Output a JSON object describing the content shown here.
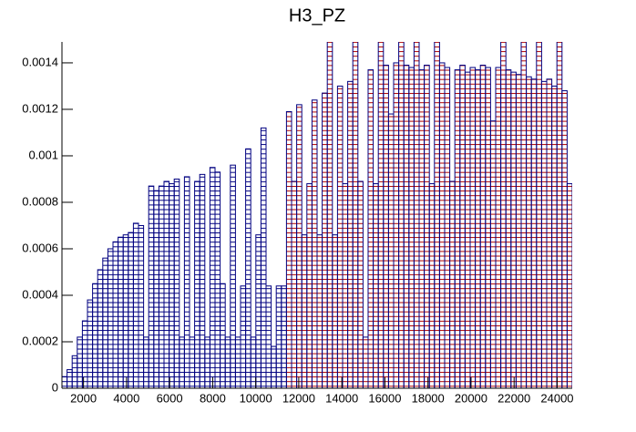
{
  "chart_data": {
    "type": "histogram",
    "title": "H3_PZ",
    "bins": [
      1000,
      1237,
      1474,
      1711,
      1948,
      2185,
      2422,
      2659,
      2896,
      3133,
      3370,
      3607,
      3844,
      4081,
      4318,
      4555,
      4792,
      5029,
      5266,
      5503,
      5740,
      5977,
      6214,
      6451,
      6688,
      6925,
      7162,
      7399,
      7636,
      7873,
      8110,
      8347,
      8584,
      8821,
      9058,
      9295,
      9532,
      9769,
      10006,
      10243,
      10480,
      10717,
      10954,
      11191,
      11428,
      11665,
      11902,
      12139,
      12376,
      12613,
      12850,
      13087,
      13324,
      13561,
      13798,
      14035,
      14272,
      14509,
      14746,
      14983,
      15220,
      15457,
      15694,
      15931,
      16168,
      16405,
      16642,
      16879,
      17116,
      17353,
      17590,
      17827,
      18064,
      18301,
      18538,
      18775,
      19012,
      19249,
      19486,
      19723,
      19960,
      20197,
      20434,
      20671,
      20908,
      21145,
      21382,
      21619,
      21856,
      22093,
      22330,
      22567,
      22804,
      23041,
      23278,
      23515,
      23752,
      23989,
      24226,
      24463,
      24700
    ],
    "values": [
      5e-05,
      8e-05,
      0.00014,
      0.00022,
      0.00029,
      0.00038,
      0.00045,
      0.00051,
      0.00056,
      0.0006,
      0.00063,
      0.00065,
      0.00066,
      0.00067,
      0.00071,
      0.0007,
      0.00022,
      0.00087,
      0.00085,
      0.00087,
      0.00089,
      0.00088,
      0.0009,
      0.00022,
      0.00091,
      0.00022,
      0.00089,
      0.00092,
      0.00022,
      0.00095,
      0.00093,
      0.00045,
      0.00022,
      0.00096,
      0.00022,
      0.00044,
      0.00103,
      0.00022,
      0.00066,
      0.00112,
      0.00044,
      0.00018,
      0.00044,
      0.00044,
      0.00119,
      0.00089,
      0.00122,
      0.00066,
      0.00088,
      0.00124,
      0.00066,
      0.00127,
      0.0015,
      0.00066,
      0.0013,
      0.00088,
      0.00132,
      0.0015,
      0.00089,
      0.00022,
      0.00137,
      0.00088,
      0.0015,
      0.00139,
      0.00118,
      0.0014,
      0.0015,
      0.00139,
      0.00138,
      0.0015,
      0.00137,
      0.00139,
      0.00088,
      0.0015,
      0.0014,
      0.00138,
      0.00089,
      0.00137,
      0.00139,
      0.00136,
      0.00138,
      0.00137,
      0.00139,
      0.00138,
      0.00115,
      0.00138,
      0.0015,
      0.00137,
      0.00136,
      0.00135,
      0.0015,
      0.00134,
      0.00133,
      0.0015,
      0.00132,
      0.00133,
      0.0013,
      0.0015,
      0.00128,
      0.00088
    ],
    "xlim": [
      1000,
      24700
    ],
    "ylim": [
      0,
      0.00149
    ],
    "xticks": [
      2000,
      4000,
      6000,
      8000,
      10000,
      12000,
      14000,
      16000,
      18000,
      20000,
      22000,
      24000
    ],
    "yticks": [
      0,
      0.0002,
      0.0004,
      0.0006,
      0.0008,
      0.001,
      0.0012,
      0.0014
    ],
    "line_color": "#000080",
    "hatch_colors": [
      {
        "from": 1000,
        "color": "#000080"
      },
      {
        "from": 11428,
        "color": "#b00000"
      }
    ]
  }
}
